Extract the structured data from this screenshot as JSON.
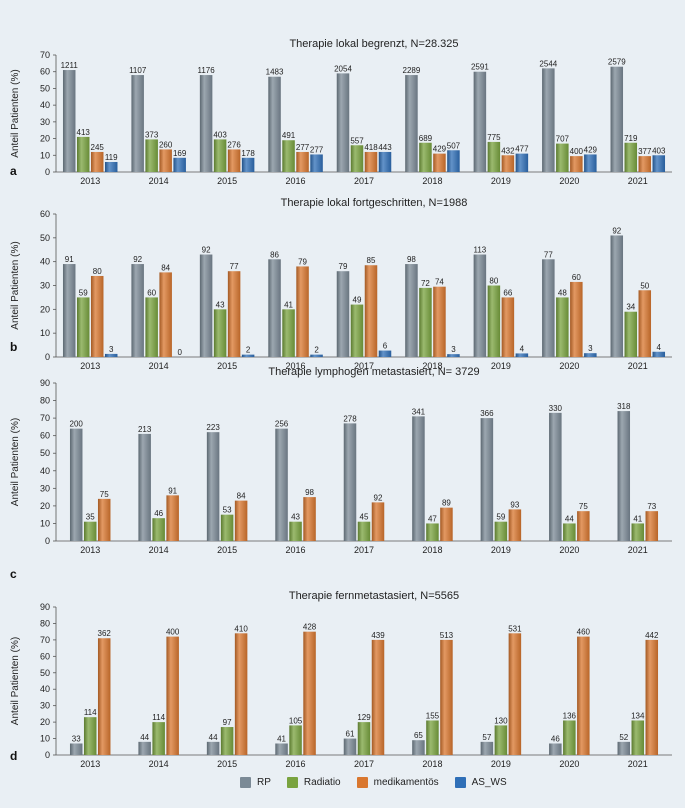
{
  "series_names": [
    "RP",
    "Radiatio",
    "medikamentös",
    "AS_WS"
  ],
  "colors": {
    "RP": "#7b8a96",
    "Radiatio": "#79a33f",
    "medikamentös": "#d9772f",
    "AS_WS": "#2f6fb7"
  },
  "chart_data": [
    {
      "type": "bar",
      "panel_letter": "a",
      "title": "Therapie lokal begrenzt, N=28.325",
      "ylabel": "Anteil Patienten (%)",
      "xlabel": "",
      "ylim": [
        0,
        70
      ],
      "yticks": [
        0,
        10,
        20,
        30,
        40,
        50,
        60,
        70
      ],
      "categories": [
        "2013",
        "2014",
        "2015",
        "2016",
        "2017",
        "2018",
        "2019",
        "2020",
        "2021"
      ],
      "series": [
        {
          "name": "RP",
          "values": [
            61,
            58,
            58,
            57,
            59,
            58,
            60,
            62,
            63
          ],
          "labels": [
            "1211",
            "1107",
            "1176",
            "1483",
            "2054",
            "2289",
            "2591",
            "2544",
            "2579"
          ]
        },
        {
          "name": "Radiatio",
          "values": [
            21,
            19.5,
            19.5,
            19,
            16,
            17.5,
            18,
            17,
            17.5
          ],
          "labels": [
            "413",
            "373",
            "403",
            "491",
            "557",
            "689",
            "775",
            "707",
            "719"
          ]
        },
        {
          "name": "medikamentös",
          "values": [
            12,
            13.5,
            13.5,
            12,
            12,
            11,
            10,
            9.5,
            9.5
          ],
          "labels": [
            "245",
            "260",
            "276",
            "277",
            "418",
            "429",
            "432",
            "400",
            "377"
          ]
        },
        {
          "name": "AS_WS",
          "values": [
            6,
            8.5,
            8.5,
            10.5,
            12,
            13,
            11,
            10.5,
            10
          ],
          "labels": [
            "119",
            "169",
            "178",
            "277",
            "443",
            "507",
            "477",
            "429",
            "403"
          ]
        }
      ]
    },
    {
      "type": "bar",
      "panel_letter": "b",
      "title": "Therapie lokal fortgeschritten, N=1988",
      "ylabel": "Anteil Patienten (%)",
      "xlabel": "",
      "ylim": [
        0,
        60
      ],
      "yticks": [
        0,
        10,
        20,
        30,
        40,
        50,
        60
      ],
      "categories": [
        "2013",
        "2014",
        "2015",
        "2016",
        "2017",
        "2018",
        "2019",
        "2020",
        "2021"
      ],
      "series": [
        {
          "name": "RP",
          "values": [
            39,
            39,
            43,
            41,
            36,
            39,
            43,
            41,
            51
          ],
          "labels": [
            "91",
            "92",
            "92",
            "86",
            "79",
            "98",
            "113",
            "77",
            "92"
          ]
        },
        {
          "name": "Radiatio",
          "values": [
            25,
            25,
            20,
            20,
            22,
            29,
            30,
            25,
            19
          ],
          "labels": [
            "59",
            "60",
            "43",
            "41",
            "49",
            "72",
            "80",
            "48",
            "34"
          ]
        },
        {
          "name": "medikamentös",
          "values": [
            34,
            35.5,
            36,
            38,
            38.5,
            29.5,
            25,
            31.5,
            28
          ],
          "labels": [
            "80",
            "84",
            "77",
            "79",
            "85",
            "74",
            "66",
            "60",
            "50"
          ]
        },
        {
          "name": "AS_WS",
          "values": [
            1.3,
            0,
            1,
            1,
            2.7,
            1.2,
            1.5,
            1.6,
            2.2
          ],
          "labels": [
            "3",
            "0",
            "2",
            "2",
            "6",
            "3",
            "4",
            "3",
            "4"
          ]
        }
      ]
    },
    {
      "type": "bar",
      "panel_letter": "c",
      "title": "Therapie lymphogen metastasiert, N= 3729",
      "ylabel": "Anteil Patienten (%)",
      "xlabel": "",
      "ylim": [
        0,
        90
      ],
      "yticks": [
        0,
        10,
        20,
        30,
        40,
        50,
        60,
        70,
        80,
        90
      ],
      "categories": [
        "2013",
        "2014",
        "2015",
        "2016",
        "2017",
        "2018",
        "2019",
        "2020",
        "2021"
      ],
      "series": [
        {
          "name": "RP",
          "values": [
            64,
            61,
            62,
            64,
            67,
            71,
            70,
            73,
            74
          ],
          "labels": [
            "200",
            "213",
            "223",
            "256",
            "278",
            "341",
            "366",
            "330",
            "318"
          ]
        },
        {
          "name": "Radiatio",
          "values": [
            11,
            13,
            15,
            11,
            11,
            10,
            11,
            10,
            10
          ],
          "labels": [
            "35",
            "46",
            "53",
            "43",
            "45",
            "47",
            "59",
            "44",
            "41"
          ]
        },
        {
          "name": "medikamentös",
          "values": [
            24,
            26,
            23,
            25,
            22,
            19,
            18,
            17,
            17
          ],
          "labels": [
            "75",
            "91",
            "84",
            "98",
            "92",
            "89",
            "93",
            "75",
            "73"
          ]
        }
      ]
    },
    {
      "type": "bar",
      "panel_letter": "d",
      "title": "Therapie fernmetastasiert, N=5565",
      "ylabel": "Anteil Patienten (%)",
      "xlabel": "",
      "ylim": [
        0,
        90
      ],
      "yticks": [
        0,
        10,
        20,
        30,
        40,
        50,
        60,
        70,
        80,
        90
      ],
      "categories": [
        "2013",
        "2014",
        "2015",
        "2016",
        "2017",
        "2018",
        "2019",
        "2020",
        "2021"
      ],
      "series": [
        {
          "name": "RP",
          "values": [
            7,
            8,
            8,
            7,
            10,
            9,
            8,
            7,
            8
          ],
          "labels": [
            "33",
            "44",
            "44",
            "41",
            "61",
            "65",
            "57",
            "46",
            "52"
          ]
        },
        {
          "name": "Radiatio",
          "values": [
            23,
            20,
            17,
            18,
            20,
            21,
            18,
            21,
            21
          ],
          "labels": [
            "114",
            "114",
            "97",
            "105",
            "129",
            "155",
            "130",
            "136",
            "134"
          ]
        },
        {
          "name": "medikamentös",
          "values": [
            71,
            72,
            74,
            75,
            70,
            70,
            74,
            72,
            70
          ],
          "labels": [
            "362",
            "400",
            "410",
            "428",
            "439",
            "513",
            "531",
            "460",
            "442"
          ]
        }
      ]
    }
  ]
}
